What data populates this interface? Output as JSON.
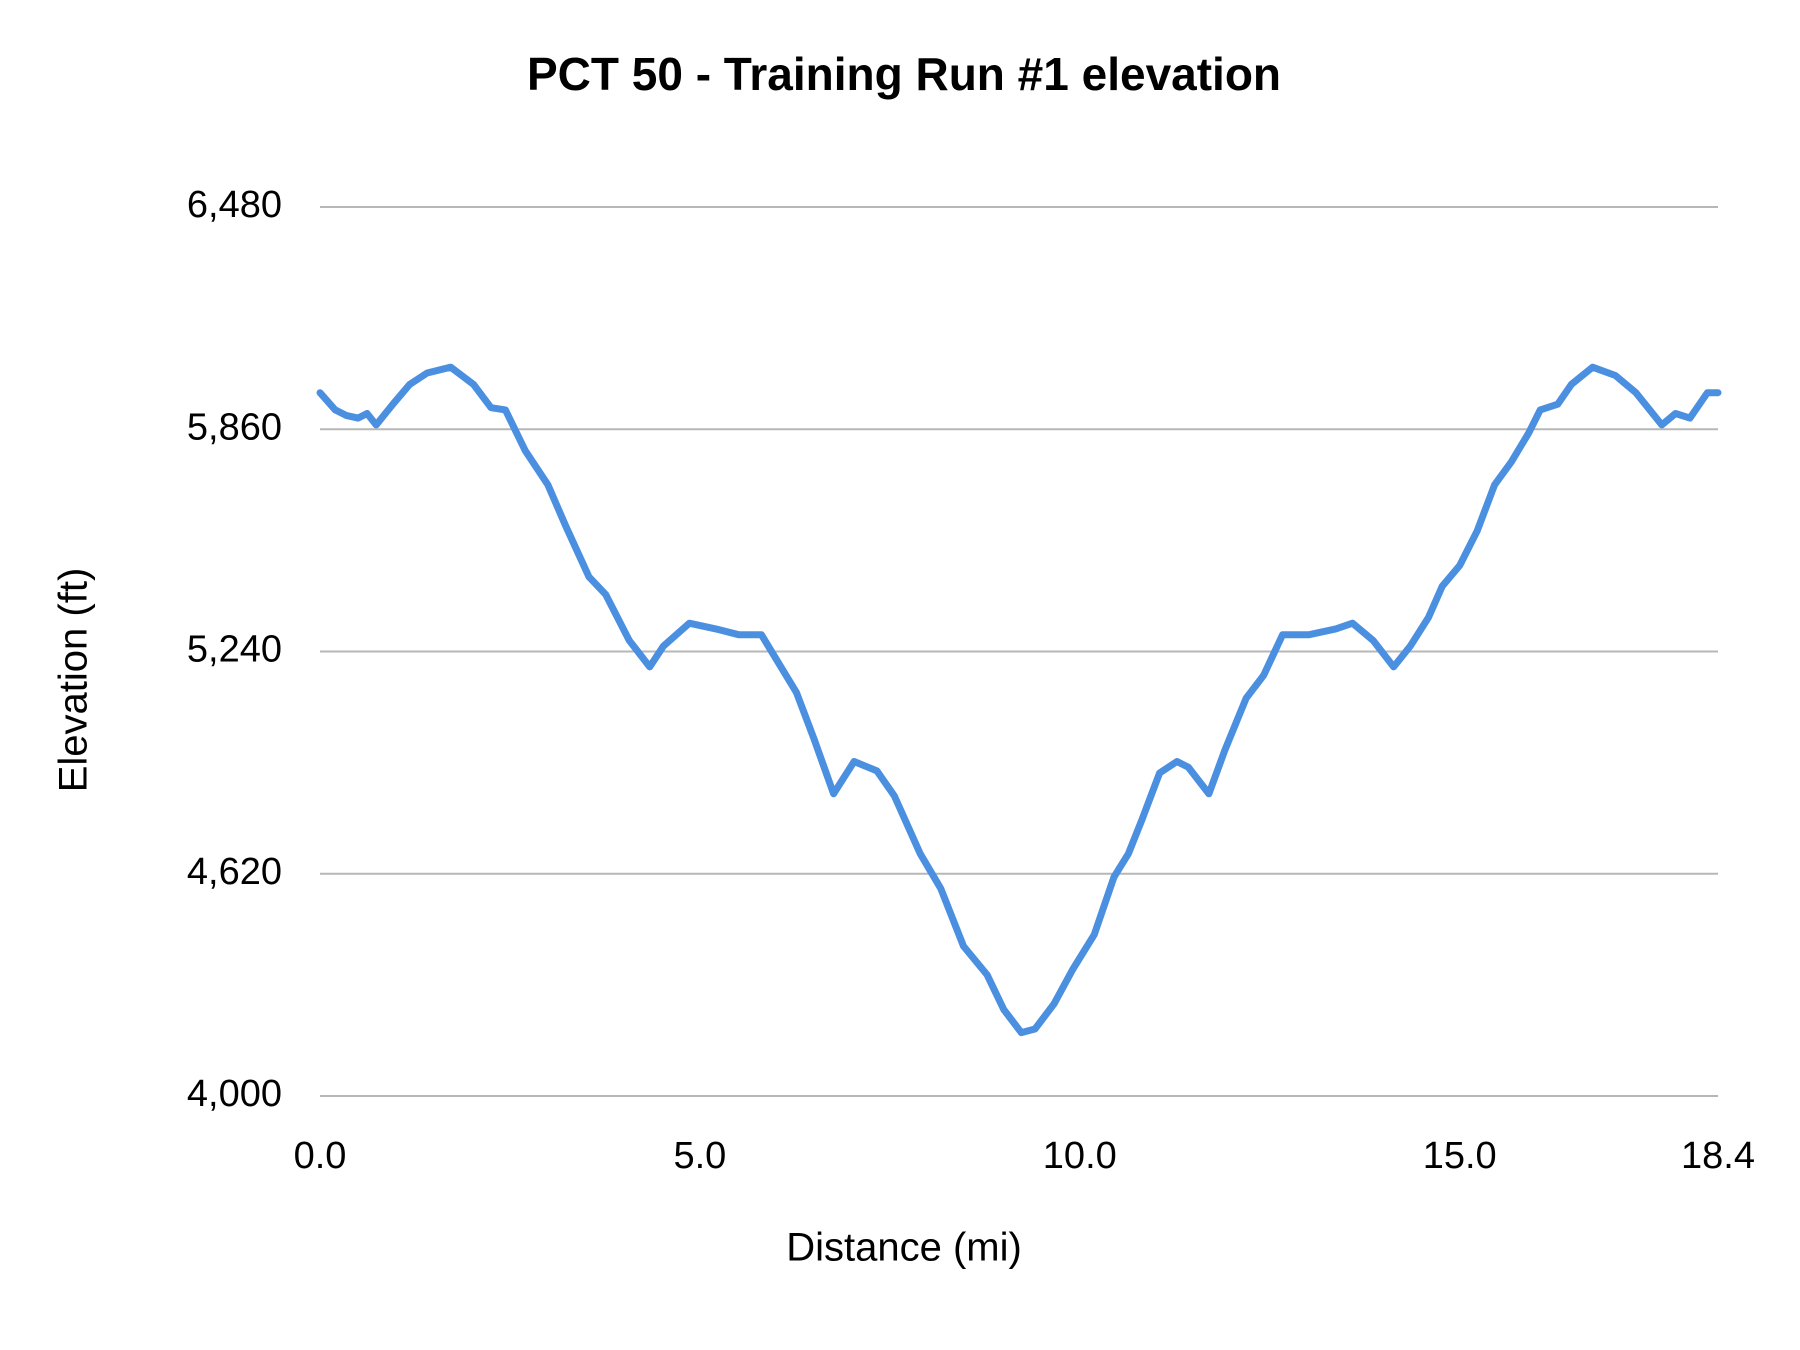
{
  "chart_data": {
    "type": "line",
    "title": "PCT 50 - Training Run #1 elevation",
    "x_label": "Distance (mi)",
    "y_label": "Elevation (ft)",
    "xlim": [
      0,
      18.4
    ],
    "xticks": [
      {
        "value": 0,
        "label": "0.0"
      },
      {
        "value": 5,
        "label": "5.0"
      },
      {
        "value": 10,
        "label": "10.0"
      },
      {
        "value": 15,
        "label": "15.0"
      },
      {
        "value": 18.4,
        "label": "18.4"
      }
    ],
    "ylim": [
      4000,
      6480
    ],
    "yticks": [
      {
        "value": 4000,
        "label": "4,000"
      },
      {
        "value": 4620,
        "label": "4,620"
      },
      {
        "value": 5240,
        "label": "5,240"
      },
      {
        "value": 5860,
        "label": "5,860"
      },
      {
        "value": 6480,
        "label": "6,480"
      }
    ],
    "grid": true,
    "series": [
      {
        "name": "Elevation",
        "color": "#4a8fe0",
        "x": [
          0,
          0.2,
          0.35,
          0.5,
          0.62,
          0.74,
          0.96,
          1.18,
          1.41,
          1.72,
          2.02,
          2.25,
          2.44,
          2.7,
          3.0,
          3.23,
          3.54,
          3.76,
          4.07,
          4.34,
          4.52,
          4.86,
          5.21,
          5.51,
          5.81,
          6.27,
          6.5,
          6.76,
          7.03,
          7.33,
          7.56,
          7.9,
          8.17,
          8.47,
          8.78,
          9.0,
          9.23,
          9.41,
          9.66,
          9.91,
          10.19,
          10.45,
          10.64,
          10.82,
          11.05,
          11.28,
          11.43,
          11.7,
          11.91,
          12.19,
          12.42,
          12.67,
          13.02,
          13.37,
          13.59,
          13.86,
          14.13,
          14.35,
          14.59,
          14.77,
          15.0,
          15.23,
          15.46,
          15.68,
          15.91,
          16.06,
          16.29,
          16.47,
          16.75,
          17.05,
          17.32,
          17.66,
          17.84,
          18.03,
          18.26,
          18.4
        ],
        "values": [
          5962,
          5914,
          5898,
          5891,
          5904,
          5872,
          5930,
          5985,
          6017,
          6033,
          5985,
          5920,
          5914,
          5801,
          5705,
          5592,
          5448,
          5399,
          5271,
          5197,
          5255,
          5319,
          5303,
          5287,
          5287,
          5126,
          4997,
          4843,
          4933,
          4907,
          4837,
          4676,
          4579,
          4418,
          4338,
          4241,
          4177,
          4187,
          4257,
          4354,
          4450,
          4611,
          4676,
          4772,
          4901,
          4933,
          4917,
          4843,
          4965,
          5110,
          5174,
          5287,
          5287,
          5303,
          5319,
          5271,
          5197,
          5255,
          5335,
          5422,
          5480,
          5576,
          5705,
          5769,
          5850,
          5914,
          5930,
          5985,
          6033,
          6010,
          5962,
          5872,
          5904,
          5891,
          5962,
          5962
        ]
      }
    ]
  }
}
